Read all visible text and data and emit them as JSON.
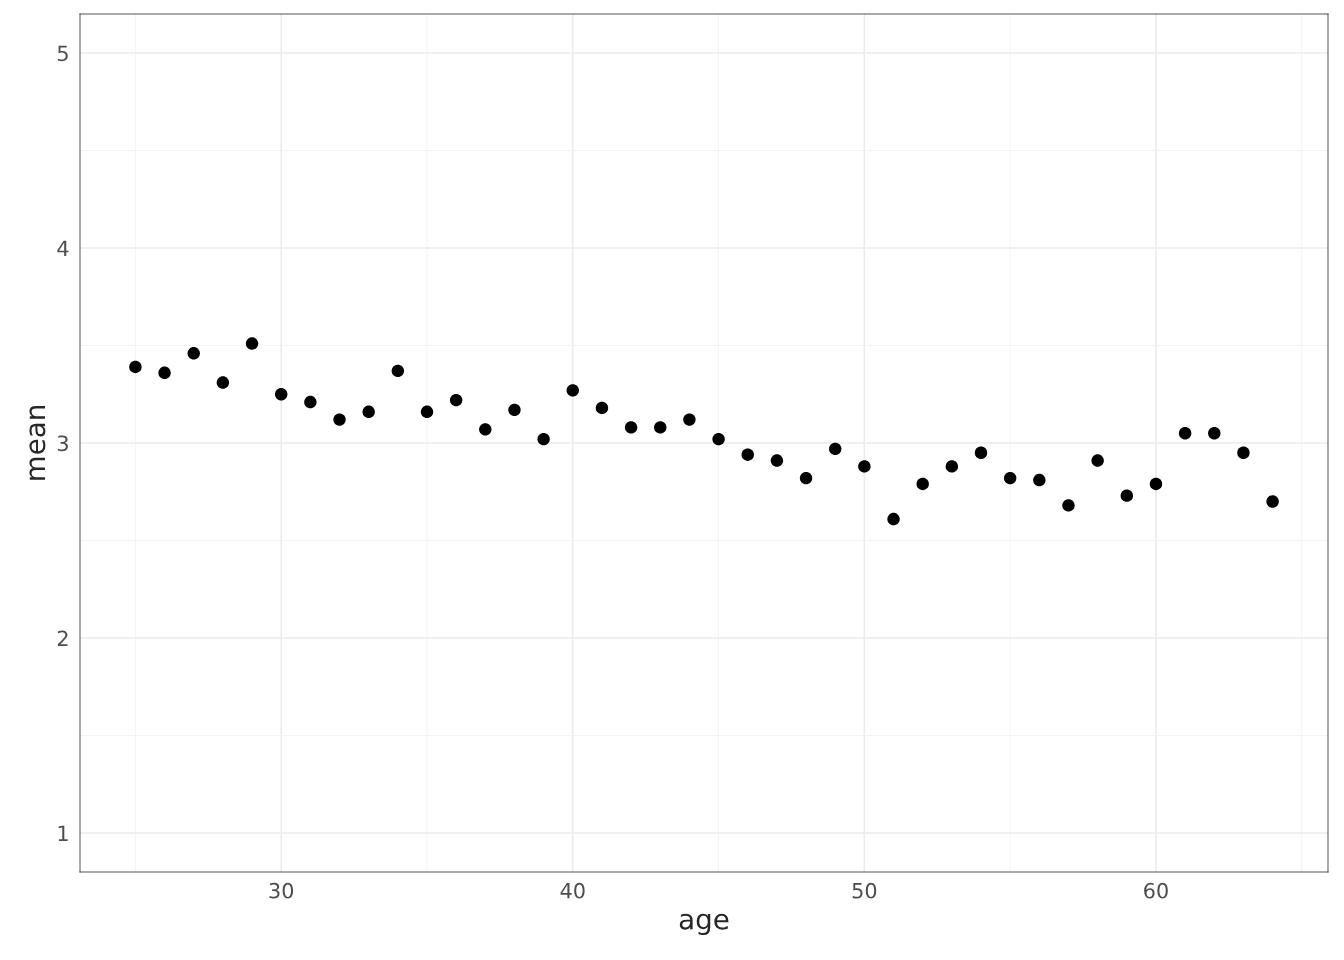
{
  "chart_data": {
    "type": "scatter",
    "xlabel": "age",
    "ylabel": "mean",
    "x": [
      25,
      26,
      27,
      28,
      29,
      30,
      31,
      32,
      33,
      34,
      35,
      36,
      37,
      38,
      39,
      40,
      41,
      42,
      43,
      44,
      45,
      46,
      47,
      48,
      49,
      50,
      51,
      52,
      53,
      54,
      55,
      56,
      57,
      58,
      59,
      60,
      61,
      62,
      63,
      64
    ],
    "values": [
      3.39,
      3.36,
      3.46,
      3.31,
      3.51,
      3.25,
      3.21,
      3.12,
      3.16,
      3.37,
      3.16,
      3.22,
      3.07,
      3.17,
      3.02,
      3.27,
      3.18,
      3.08,
      3.08,
      3.12,
      3.02,
      2.94,
      2.91,
      2.82,
      2.97,
      2.88,
      2.61,
      2.79,
      2.88,
      2.95,
      2.82,
      2.81,
      2.68,
      2.91,
      2.73,
      2.79,
      3.05,
      3.05,
      2.95,
      2.7
    ],
    "color": "#000000",
    "marker": "circle",
    "xlim": [
      23.1,
      65.9
    ],
    "ylim": [
      0.8,
      5.2
    ],
    "xticks": [
      30,
      40,
      50,
      60
    ],
    "yticks": [
      1,
      2,
      3,
      4,
      5
    ],
    "grid": true
  }
}
